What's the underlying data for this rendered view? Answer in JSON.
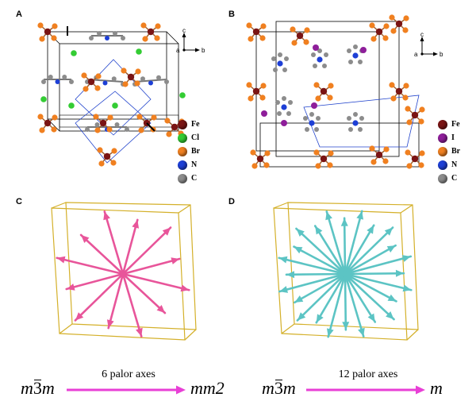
{
  "panels": {
    "A": {
      "label": "A",
      "axes": {
        "a": "a",
        "b": "b",
        "c": "c"
      },
      "legend": [
        {
          "symbol": "Fe",
          "color": "#7a1414"
        },
        {
          "symbol": "Cl",
          "color": "#33cc33"
        },
        {
          "symbol": "Br",
          "color": "#f08020"
        },
        {
          "symbol": "N",
          "color": "#1d3fd6"
        },
        {
          "symbol": "C",
          "color": "#8c8c8c"
        }
      ]
    },
    "B": {
      "label": "B",
      "axes": {
        "a": "a",
        "b": "b",
        "c": "c"
      },
      "legend": [
        {
          "symbol": "Fe",
          "color": "#7a1414"
        },
        {
          "symbol": "I",
          "color": "#8e1e9a"
        },
        {
          "symbol": "Br",
          "color": "#f08020"
        },
        {
          "symbol": "N",
          "color": "#1d3fd6"
        },
        {
          "symbol": "C",
          "color": "#8c8c8c"
        }
      ]
    },
    "C": {
      "label": "C",
      "arrow_color": "#e8559a",
      "from_group": {
        "pre": "m",
        "bar": "3",
        "post": "m"
      },
      "arrow_text": "6 palor axes",
      "to_group": "mm2"
    },
    "D": {
      "label": "D",
      "arrow_color": "#5cc4c4",
      "from_group": {
        "pre": "m",
        "bar": "3",
        "post": "m"
      },
      "arrow_text": "12 palor axes",
      "to_group": "m"
    }
  },
  "colors": {
    "cell_edge": "#000000",
    "cell_blue": "#2244cc",
    "box_edge": "#d4b02a",
    "transition_arrow": "#e83fd6"
  }
}
